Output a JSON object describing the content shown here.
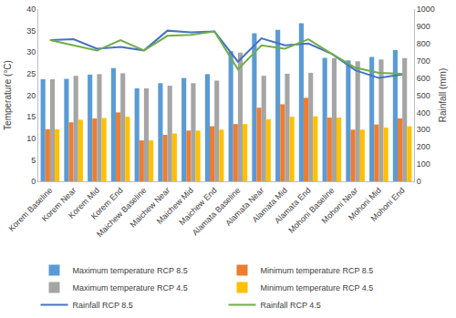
{
  "chart_data": {
    "type": "bar",
    "categories": [
      "Korem Baseline",
      "Korem Near",
      "Korem Mid",
      "Korem End",
      "Maichew Baseline",
      "Maichew Near",
      "Maichew Mid",
      "Maichew End",
      "Alamata Baseline",
      "Alamata Near",
      "Alamata Mid",
      "Alamata End",
      "Mohoni Baseline",
      "Mohoni Near",
      "Mohoni Mid",
      "Mohoni End"
    ],
    "y_label": "Temperature (°C)",
    "y2_label": "Rainfall (mm)",
    "ylim": [
      0,
      40
    ],
    "yticks": [
      0,
      5,
      10,
      15,
      20,
      25,
      30,
      35,
      40
    ],
    "y2lim": [
      0,
      1000
    ],
    "y2ticks": [
      0,
      100,
      200,
      300,
      400,
      500,
      600,
      700,
      800,
      900,
      1000
    ],
    "grid": false,
    "legend": "bottom",
    "series": [
      {
        "name": "Maximum temperature RCP 8.5",
        "type": "bar",
        "color": "#5B9BD5",
        "values": [
          23.7,
          23.8,
          24.8,
          26.3,
          21.6,
          22.8,
          24.0,
          24.9,
          30.2,
          34.4,
          35.2,
          36.7,
          28.7,
          28.1,
          28.9,
          30.5
        ]
      },
      {
        "name": "Minimum temperature RCP 8.5",
        "type": "bar",
        "color": "#ED7D31",
        "values": [
          12.1,
          13.7,
          14.6,
          16.0,
          9.5,
          10.8,
          11.8,
          12.8,
          13.3,
          17.1,
          17.9,
          19.4,
          14.8,
          12.0,
          13.2,
          14.6
        ]
      },
      {
        "name": "Maximum temperature RCP 4.5",
        "type": "bar",
        "color": "#A5A5A5",
        "values": [
          23.7,
          24.5,
          24.9,
          25.1,
          21.6,
          22.2,
          22.8,
          23.4,
          29.9,
          24.5,
          25.0,
          25.2,
          28.6,
          27.9,
          28.3,
          28.6
        ]
      },
      {
        "name": "Minimum temperature RCP 4.5",
        "type": "bar",
        "color": "#FFC000",
        "values": [
          12.1,
          14.3,
          14.7,
          15.0,
          9.5,
          11.1,
          11.8,
          12.0,
          13.3,
          14.4,
          15.0,
          15.1,
          14.8,
          12.0,
          12.5,
          12.8
        ]
      },
      {
        "name": "Rainfall RCP 8.5",
        "type": "line",
        "axis": "y2",
        "color": "#4472C4",
        "values": [
          820,
          825,
          770,
          780,
          760,
          875,
          865,
          870,
          695,
          830,
          790,
          800,
          740,
          645,
          600,
          620
        ]
      },
      {
        "name": "Rainfall RCP 4.5",
        "type": "line",
        "axis": "y2",
        "color": "#70AD47",
        "values": [
          820,
          790,
          760,
          820,
          760,
          845,
          850,
          870,
          650,
          790,
          770,
          825,
          740,
          660,
          630,
          625
        ]
      }
    ]
  }
}
